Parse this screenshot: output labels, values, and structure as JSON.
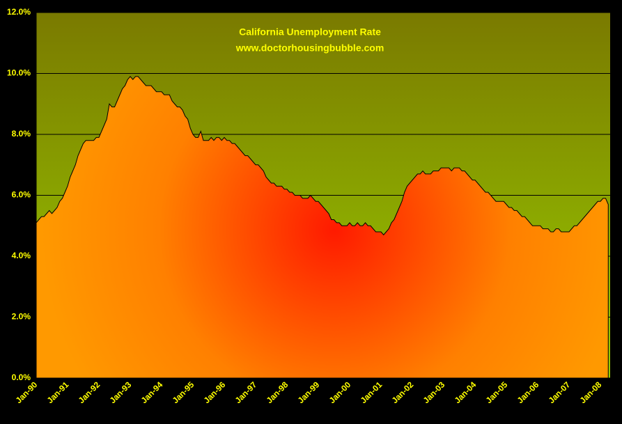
{
  "chart_data": {
    "type": "area",
    "title": "California Unemployment Rate",
    "subtitle": "www.doctorhousingbubble.com",
    "categories": [
      "Jan-90",
      null,
      null,
      null,
      null,
      null,
      null,
      null,
      null,
      null,
      null,
      null,
      "Jan-91",
      null,
      null,
      null,
      null,
      null,
      null,
      null,
      null,
      null,
      null,
      null,
      "Jan-92",
      null,
      null,
      null,
      null,
      null,
      null,
      null,
      null,
      null,
      null,
      null,
      "Jan-93",
      null,
      null,
      null,
      null,
      null,
      null,
      null,
      null,
      null,
      null,
      null,
      "Jan-94",
      null,
      null,
      null,
      null,
      null,
      null,
      null,
      null,
      null,
      null,
      null,
      "Jan-95",
      null,
      null,
      null,
      null,
      null,
      null,
      null,
      null,
      null,
      null,
      null,
      "Jan-96",
      null,
      null,
      null,
      null,
      null,
      null,
      null,
      null,
      null,
      null,
      null,
      "Jan-97",
      null,
      null,
      null,
      null,
      null,
      null,
      null,
      null,
      null,
      null,
      null,
      "Jan-98",
      null,
      null,
      null,
      null,
      null,
      null,
      null,
      null,
      null,
      null,
      null,
      "Jan-99",
      null,
      null,
      null,
      null,
      null,
      null,
      null,
      null,
      null,
      null,
      null,
      "Jan-00",
      null,
      null,
      null,
      null,
      null,
      null,
      null,
      null,
      null,
      null,
      null,
      "Jan-01",
      null,
      null,
      null,
      null,
      null,
      null,
      null,
      null,
      null,
      null,
      null,
      "Jan-02",
      null,
      null,
      null,
      null,
      null,
      null,
      null,
      null,
      null,
      null,
      null,
      "Jan-03",
      null,
      null,
      null,
      null,
      null,
      null,
      null,
      null,
      null,
      null,
      null,
      "Jan-04",
      null,
      null,
      null,
      null,
      null,
      null,
      null,
      null,
      null,
      null,
      null,
      "Jan-05",
      null,
      null,
      null,
      null,
      null,
      null,
      null,
      null,
      null,
      null,
      null,
      "Jan-06",
      null,
      null,
      null,
      null,
      null,
      null,
      null,
      null,
      null,
      null,
      null,
      "Jan-07",
      null,
      null,
      null,
      null,
      null,
      null,
      null,
      null,
      null,
      null,
      null,
      "Jan-08",
      null,
      null,
      null
    ],
    "values": [
      5.1,
      5.2,
      5.3,
      5.3,
      5.4,
      5.5,
      5.4,
      5.5,
      5.6,
      5.8,
      5.9,
      6.1,
      6.3,
      6.6,
      6.8,
      7.0,
      7.3,
      7.5,
      7.7,
      7.8,
      7.8,
      7.8,
      7.8,
      7.9,
      7.9,
      8.1,
      8.3,
      8.5,
      9.0,
      8.9,
      8.9,
      9.1,
      9.3,
      9.5,
      9.6,
      9.8,
      9.9,
      9.8,
      9.9,
      9.9,
      9.8,
      9.7,
      9.6,
      9.6,
      9.6,
      9.5,
      9.4,
      9.4,
      9.4,
      9.3,
      9.3,
      9.3,
      9.1,
      9.0,
      8.9,
      8.9,
      8.8,
      8.6,
      8.5,
      8.2,
      8.0,
      7.9,
      7.9,
      8.1,
      7.8,
      7.8,
      7.8,
      7.9,
      7.8,
      7.9,
      7.9,
      7.8,
      7.9,
      7.8,
      7.8,
      7.7,
      7.7,
      7.6,
      7.5,
      7.4,
      7.3,
      7.3,
      7.2,
      7.1,
      7.0,
      7.0,
      6.9,
      6.8,
      6.6,
      6.5,
      6.4,
      6.4,
      6.3,
      6.3,
      6.3,
      6.2,
      6.2,
      6.1,
      6.1,
      6.0,
      6.0,
      6.0,
      5.9,
      5.9,
      5.9,
      6.0,
      5.9,
      5.8,
      5.8,
      5.7,
      5.6,
      5.5,
      5.4,
      5.2,
      5.2,
      5.1,
      5.1,
      5.0,
      5.0,
      5.0,
      5.1,
      5.0,
      5.0,
      5.1,
      5.0,
      5.0,
      5.1,
      5.0,
      5.0,
      4.9,
      4.8,
      4.8,
      4.8,
      4.7,
      4.8,
      4.9,
      5.1,
      5.2,
      5.4,
      5.6,
      5.8,
      6.1,
      6.3,
      6.4,
      6.5,
      6.6,
      6.7,
      6.7,
      6.8,
      6.7,
      6.7,
      6.7,
      6.8,
      6.8,
      6.8,
      6.9,
      6.9,
      6.9,
      6.9,
      6.8,
      6.9,
      6.9,
      6.9,
      6.8,
      6.8,
      6.7,
      6.6,
      6.5,
      6.5,
      6.4,
      6.3,
      6.2,
      6.1,
      6.1,
      6.0,
      5.9,
      5.8,
      5.8,
      5.8,
      5.8,
      5.7,
      5.6,
      5.6,
      5.5,
      5.5,
      5.4,
      5.3,
      5.3,
      5.2,
      5.1,
      5.0,
      5.0,
      5.0,
      5.0,
      4.9,
      4.9,
      4.9,
      4.8,
      4.8,
      4.9,
      4.9,
      4.8,
      4.8,
      4.8,
      4.8,
      4.9,
      5.0,
      5.0,
      5.1,
      5.2,
      5.3,
      5.4,
      5.5,
      5.6,
      5.7,
      5.8,
      5.8,
      5.9,
      5.9,
      5.7
    ],
    "ylim": [
      0,
      12
    ],
    "yticks": [
      {
        "value": 0,
        "label": "0.0%"
      },
      {
        "value": 2,
        "label": "2.0%"
      },
      {
        "value": 4,
        "label": "4.0%"
      },
      {
        "value": 6,
        "label": "6.0%"
      },
      {
        "value": 8,
        "label": "8.0%"
      },
      {
        "value": 10,
        "label": "10.0%"
      },
      {
        "value": 12,
        "label": "12.0%"
      }
    ],
    "grid": true
  }
}
